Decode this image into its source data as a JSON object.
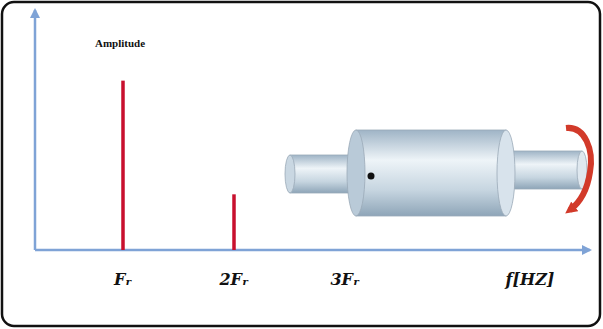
{
  "chart_data": {
    "type": "bar",
    "y_label": "Amplitude",
    "x_label": "f[HZ]",
    "categories": [
      "Fᵣ",
      "2Fᵣ",
      "3Fᵣ"
    ],
    "values": [
      73,
      24,
      0
    ],
    "color": "#c8102e",
    "ylim": [
      0,
      100
    ],
    "tick_labels": "x",
    "grid": false
  }
}
